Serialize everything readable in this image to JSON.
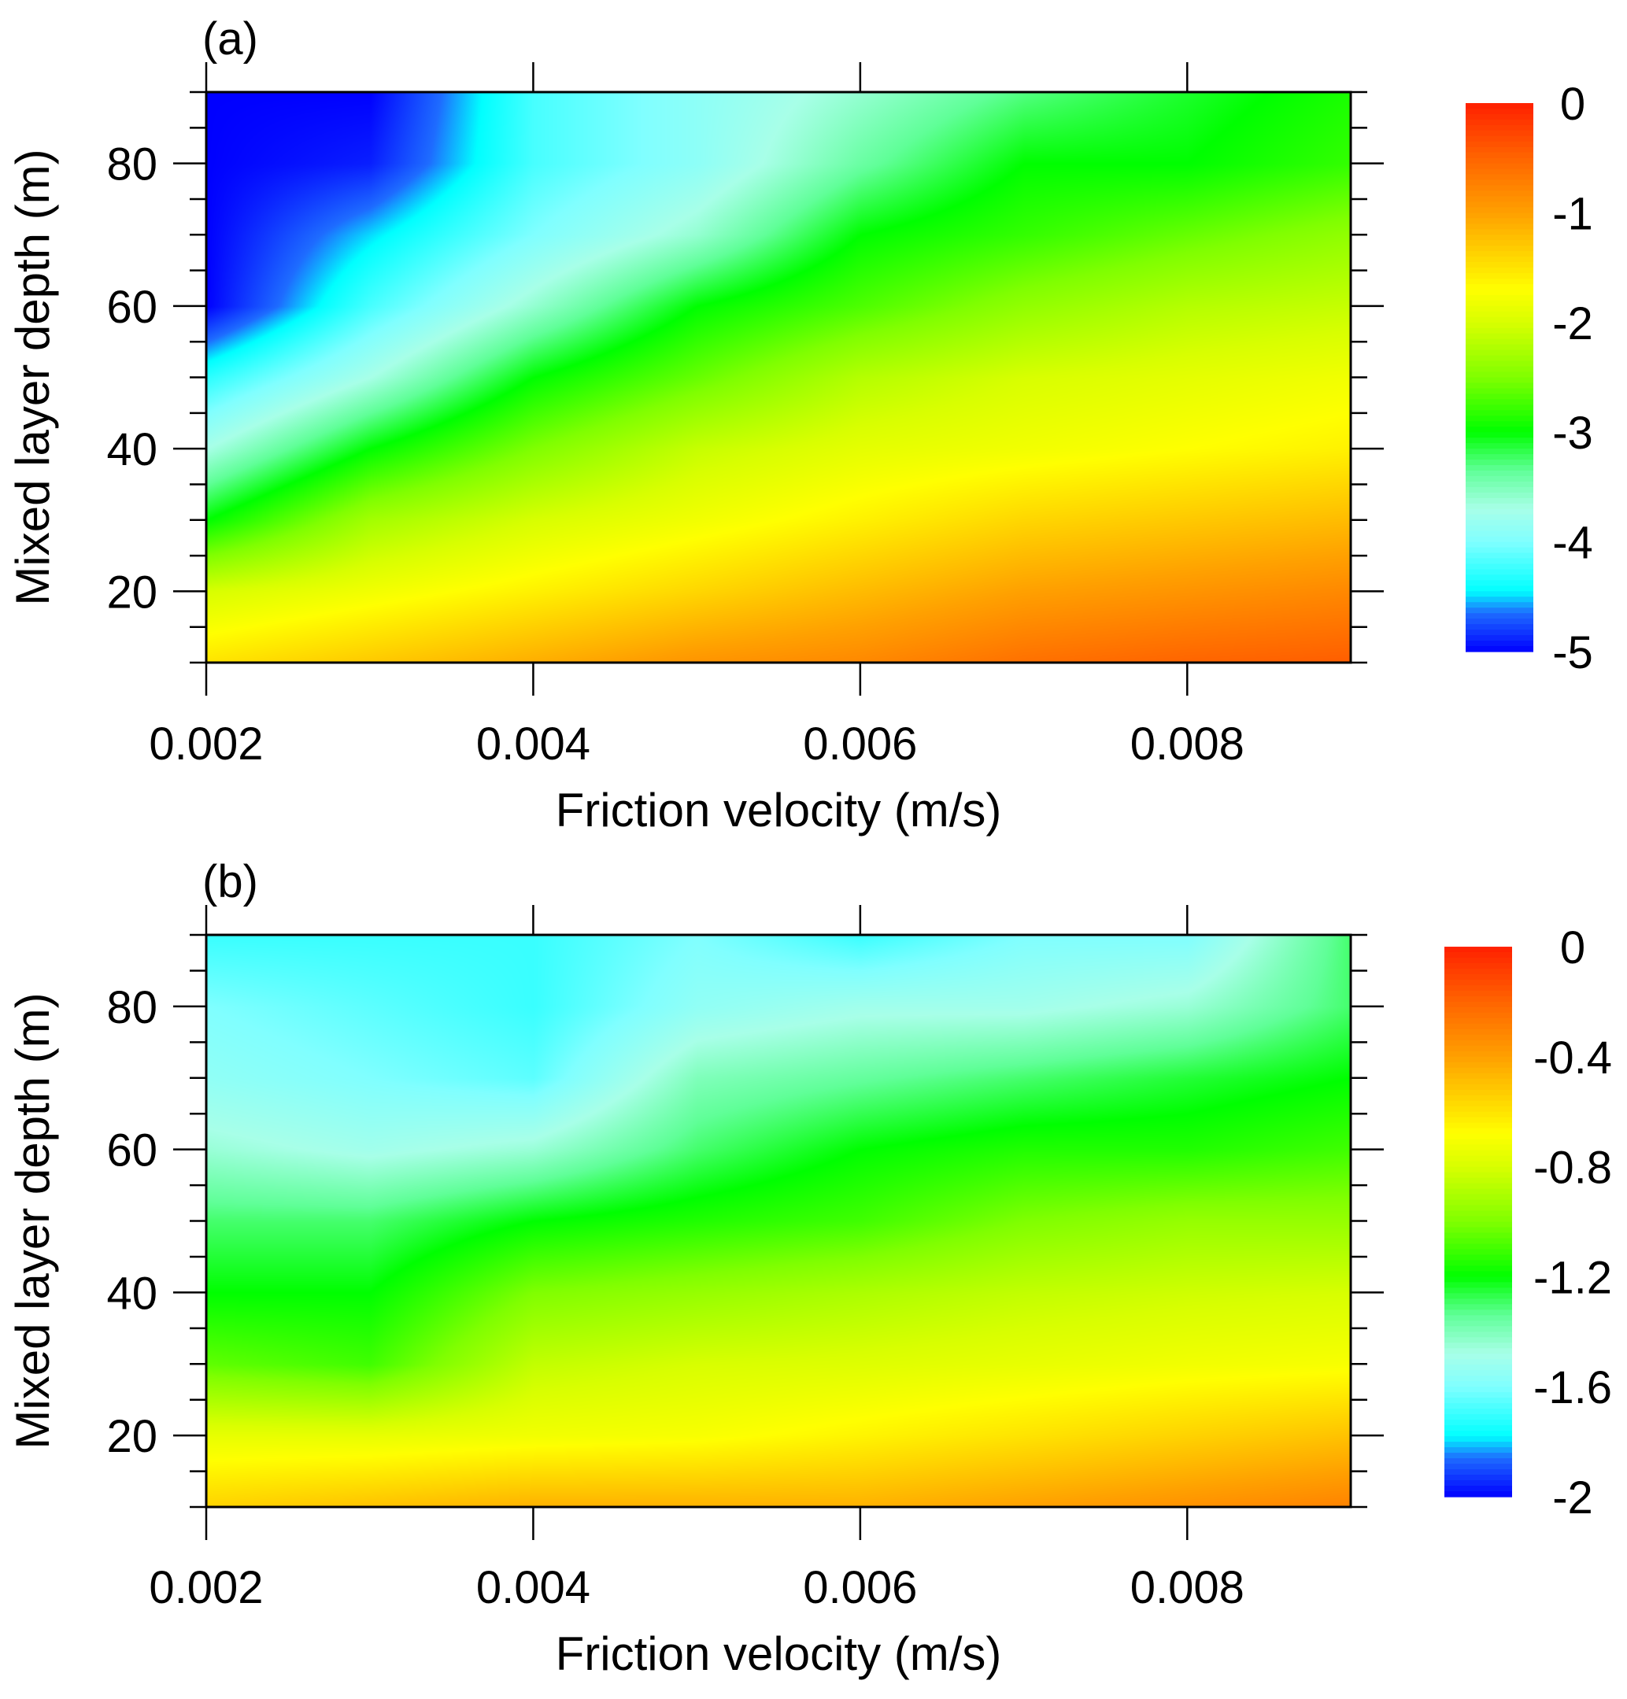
{
  "chart_data": [
    {
      "type": "heatmap",
      "panel_label": "(a)",
      "xlabel": "Friction velocity (m/s)",
      "ylabel": "Mixed layer depth (m)",
      "xlim": [
        0.002,
        0.009
      ],
      "ylim": [
        10,
        90
      ],
      "xticks": [
        "0.002",
        "0.004",
        "0.006",
        "0.008"
      ],
      "xtick_values": [
        0.002,
        0.004,
        0.006,
        0.008
      ],
      "yticks": [
        "20",
        "40",
        "60",
        "80"
      ],
      "ytick_values": [
        20,
        40,
        60,
        80
      ],
      "x": [
        0.002,
        0.003,
        0.004,
        0.005,
        0.006,
        0.007,
        0.008,
        0.009
      ],
      "y": [
        10,
        20,
        30,
        40,
        50,
        60,
        70,
        80,
        90
      ],
      "z": [
        [
          -1.5,
          -1.3,
          -1.1,
          -0.9,
          -0.8,
          -0.6,
          -0.5,
          -0.45
        ],
        [
          -2.0,
          -1.8,
          -1.6,
          -1.4,
          -1.2,
          -1.0,
          -0.9,
          -0.8
        ],
        [
          -3.0,
          -2.3,
          -2.0,
          -1.8,
          -1.6,
          -1.4,
          -1.3,
          -1.2
        ],
        [
          -3.7,
          -3.0,
          -2.5,
          -2.1,
          -1.9,
          -1.8,
          -1.7,
          -1.6
        ],
        [
          -4.3,
          -3.7,
          -3.0,
          -2.6,
          -2.2,
          -2.0,
          -1.9,
          -1.8
        ],
        [
          -5.0,
          -4.2,
          -3.6,
          -3.0,
          -2.7,
          -2.4,
          -2.2,
          -2.1
        ],
        [
          -5.0,
          -4.5,
          -4.0,
          -3.6,
          -3.0,
          -2.8,
          -2.6,
          -2.4
        ],
        [
          -5.0,
          -4.9,
          -4.2,
          -3.9,
          -3.4,
          -3.0,
          -3.0,
          -2.8
        ],
        [
          -5.0,
          -5.0,
          -4.2,
          -3.9,
          -3.6,
          -3.3,
          -3.1,
          -2.9
        ]
      ],
      "colorbar": {
        "range": [
          -5,
          0
        ],
        "labels": [
          "0",
          "-1",
          "-2",
          "-3",
          "-4",
          "-5"
        ],
        "label_values": [
          0,
          -1,
          -2,
          -3,
          -4,
          -5
        ]
      }
    },
    {
      "type": "heatmap",
      "panel_label": "(b)",
      "xlabel": "Friction velocity (m/s)",
      "ylabel": "Mixed layer depth (m)",
      "xlim": [
        0.002,
        0.009
      ],
      "ylim": [
        10,
        90
      ],
      "xticks": [
        "0.002",
        "0.004",
        "0.006",
        "0.008"
      ],
      "xtick_values": [
        0.002,
        0.004,
        0.006,
        0.008
      ],
      "yticks": [
        "20",
        "40",
        "60",
        "80"
      ],
      "ytick_values": [
        20,
        40,
        60,
        80
      ],
      "x": [
        0.002,
        0.003,
        0.004,
        0.005,
        0.006,
        0.007,
        0.008,
        0.009
      ],
      "y": [
        10,
        20,
        30,
        40,
        50,
        60,
        70,
        80,
        90
      ],
      "z": [
        [
          -0.55,
          -0.5,
          -0.45,
          -0.45,
          -0.45,
          -0.4,
          -0.35,
          -0.3
        ],
        [
          -0.75,
          -0.75,
          -0.72,
          -0.7,
          -0.65,
          -0.6,
          -0.55,
          -0.5
        ],
        [
          -1.05,
          -1.1,
          -0.85,
          -0.8,
          -0.78,
          -0.75,
          -0.72,
          -0.7
        ],
        [
          -1.2,
          -1.2,
          -1.0,
          -0.95,
          -0.9,
          -0.85,
          -0.82,
          -0.8
        ],
        [
          -1.3,
          -1.3,
          -1.2,
          -1.15,
          -1.1,
          -1.0,
          -0.95,
          -0.95
        ],
        [
          -1.45,
          -1.5,
          -1.45,
          -1.3,
          -1.2,
          -1.15,
          -1.15,
          -1.1
        ],
        [
          -1.55,
          -1.6,
          -1.65,
          -1.4,
          -1.35,
          -1.3,
          -1.25,
          -1.2
        ],
        [
          -1.6,
          -1.65,
          -1.7,
          -1.55,
          -1.5,
          -1.5,
          -1.45,
          -1.3
        ],
        [
          -1.7,
          -1.7,
          -1.7,
          -1.6,
          -1.7,
          -1.6,
          -1.6,
          -1.3
        ]
      ],
      "colorbar": {
        "range": [
          -2,
          0
        ],
        "labels": [
          "0",
          "-0.4",
          "-0.8",
          "-1.2",
          "-1.6",
          "-2"
        ],
        "label_values": [
          0,
          -0.4,
          -0.8,
          -1.2,
          -1.6,
          -2
        ]
      }
    }
  ],
  "colormap": [
    [
      0.0,
      "#0000ff"
    ],
    [
      0.07,
      "#1e6cff"
    ],
    [
      0.11,
      "#00ffff"
    ],
    [
      0.2,
      "#80ffff"
    ],
    [
      0.26,
      "#a8ffe8"
    ],
    [
      0.33,
      "#60ff98"
    ],
    [
      0.4,
      "#00ff00"
    ],
    [
      0.5,
      "#80ff00"
    ],
    [
      0.6,
      "#d8ff00"
    ],
    [
      0.66,
      "#ffff00"
    ],
    [
      0.8,
      "#ffa000"
    ],
    [
      0.9,
      "#ff6400"
    ],
    [
      1.0,
      "#ff2000"
    ]
  ]
}
